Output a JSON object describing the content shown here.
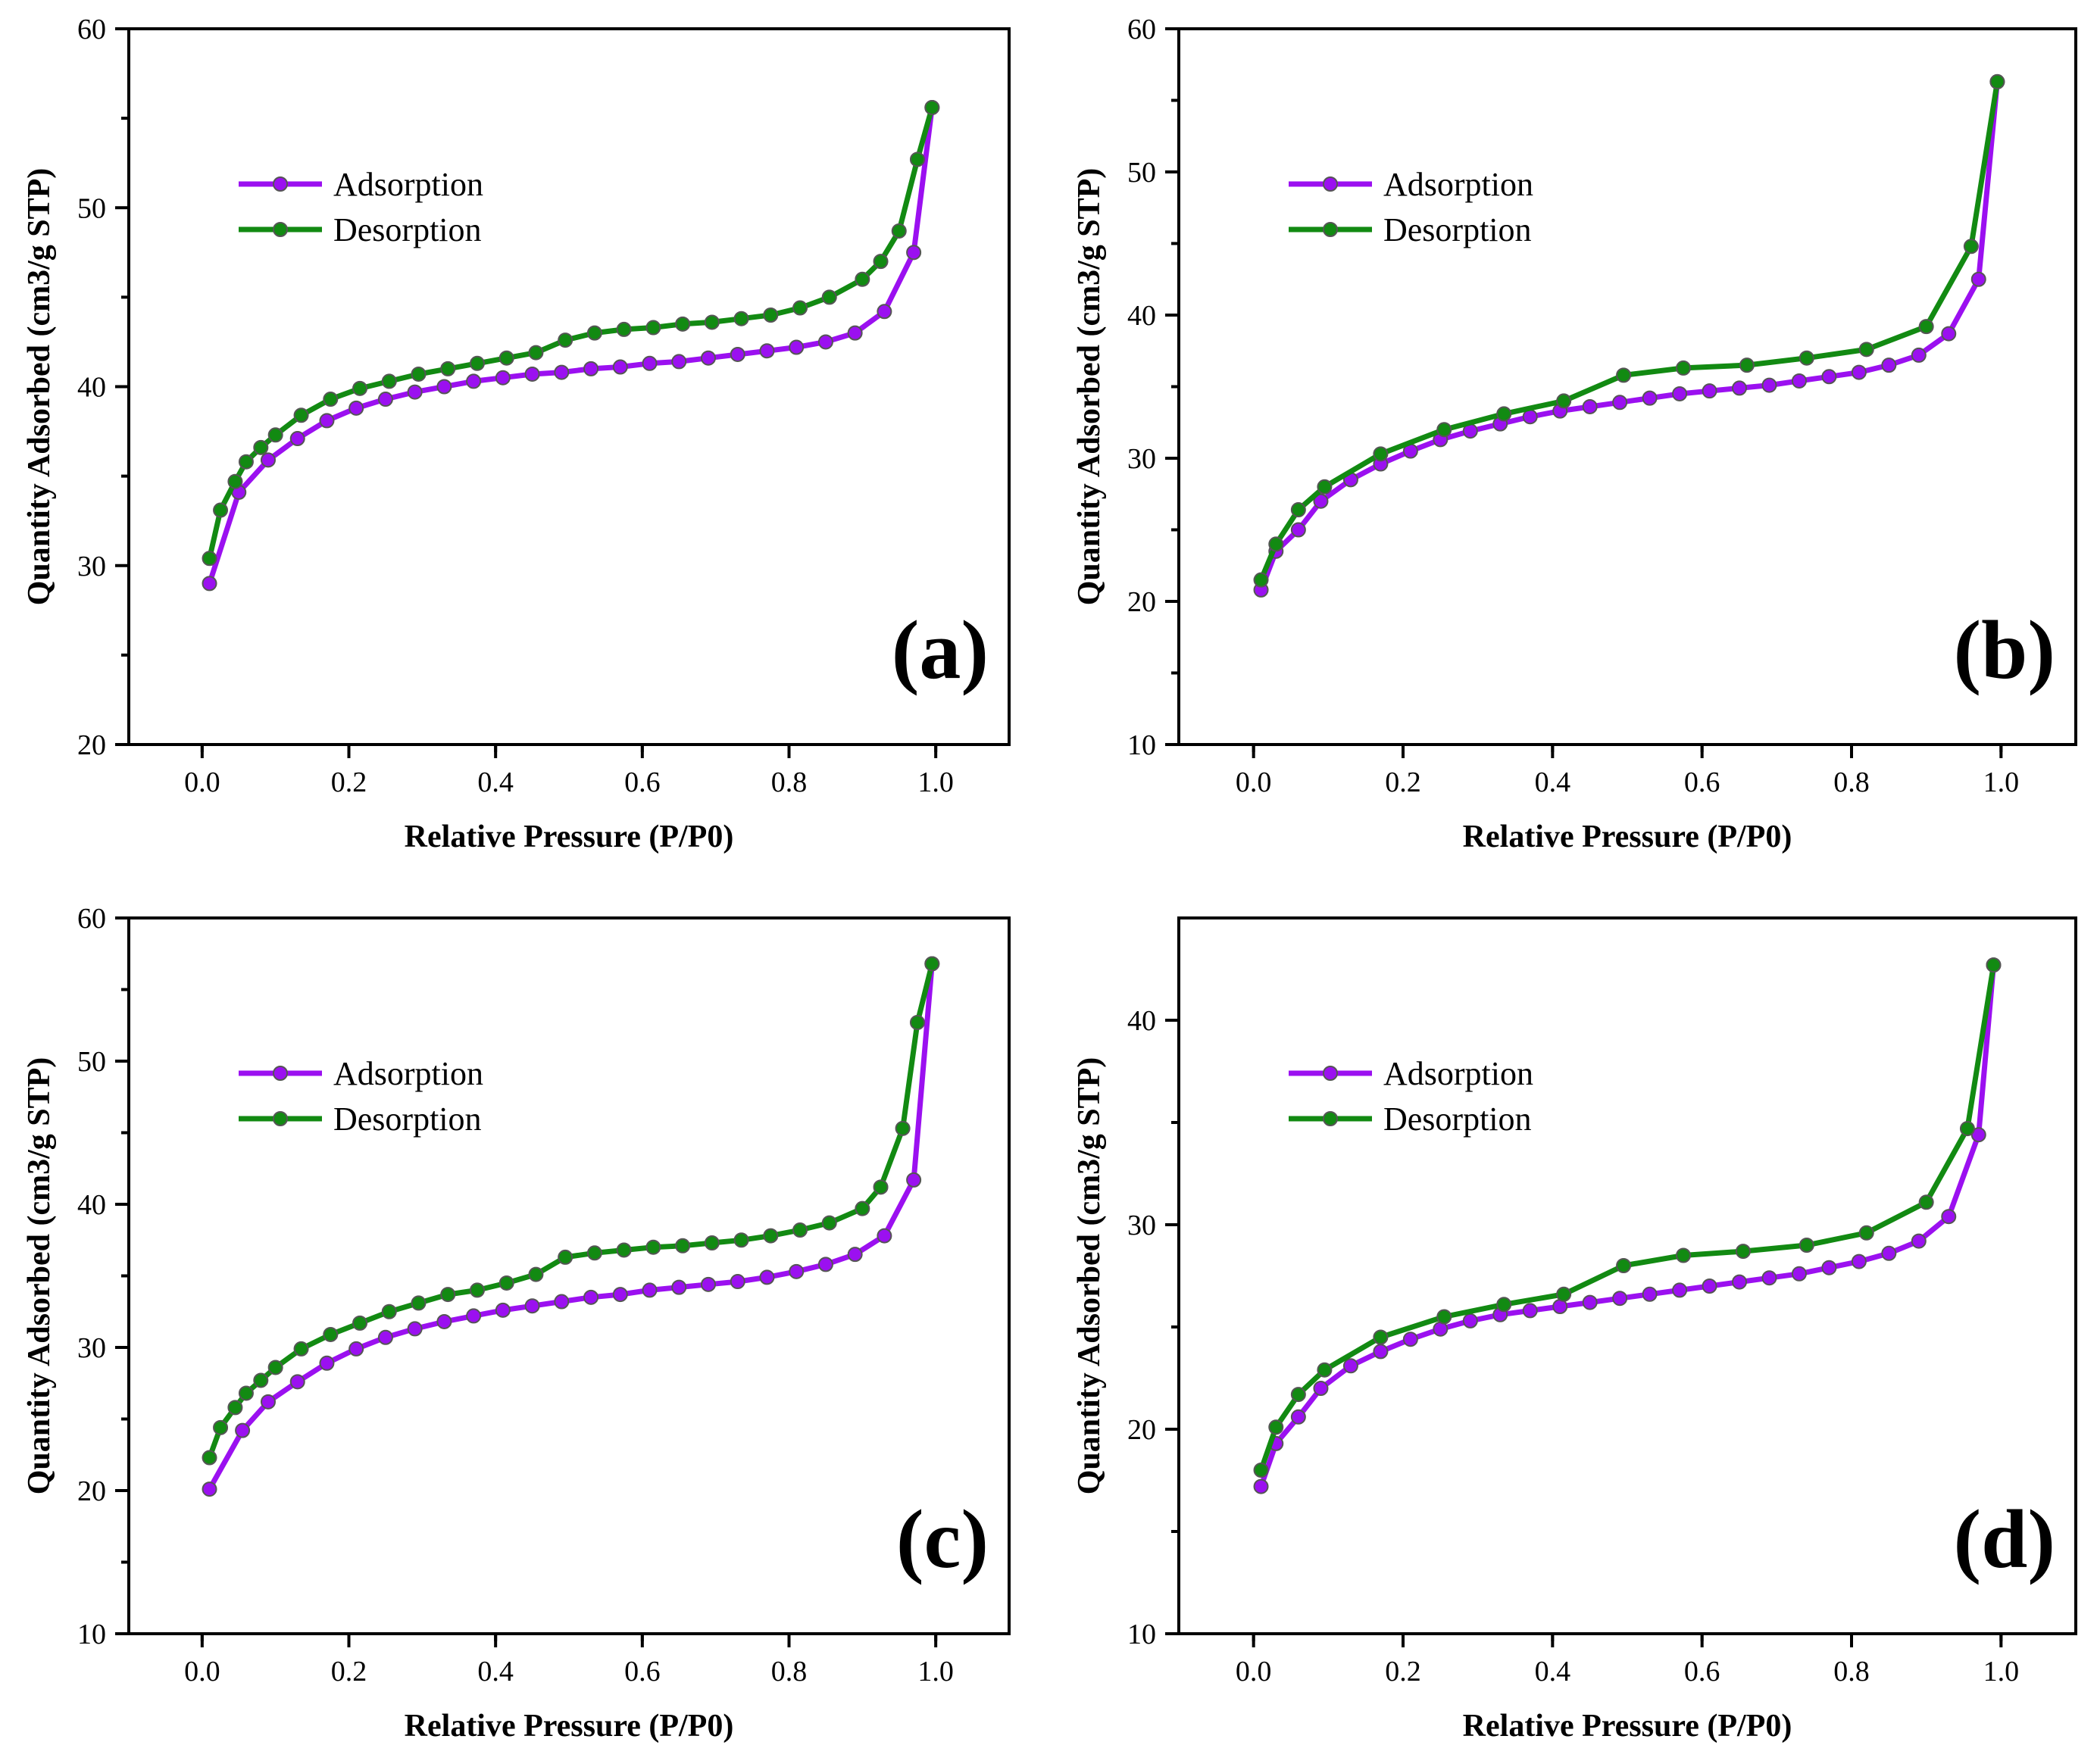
{
  "colors": {
    "adsorption": "#9b10f0",
    "desorption": "#128a12"
  },
  "chart_data": [
    {
      "type": "line",
      "panel_label": "(a)",
      "xlabel": "Relative Pressure (P/P0)",
      "ylabel": "Quantity Adsorbed (cm3/g STP)",
      "xlim": [
        -0.1,
        1.1
      ],
      "ylim": [
        20,
        60
      ],
      "xticks": [
        "0.0",
        "0.2",
        "0.4",
        "0.6",
        "0.8",
        "1.0"
      ],
      "yticks": [
        "20",
        "30",
        "40",
        "50",
        "60"
      ],
      "legend_position": "upper-left",
      "series": [
        {
          "name": "Adsorption",
          "x": [
            0.01,
            0.05,
            0.09,
            0.13,
            0.17,
            0.21,
            0.25,
            0.29,
            0.33,
            0.37,
            0.41,
            0.45,
            0.49,
            0.53,
            0.57,
            0.61,
            0.65,
            0.69,
            0.73,
            0.77,
            0.81,
            0.85,
            0.89,
            0.93,
            0.97,
            0.995
          ],
          "y": [
            29.0,
            34.1,
            35.9,
            37.1,
            38.1,
            38.8,
            39.3,
            39.7,
            40.0,
            40.3,
            40.5,
            40.7,
            40.8,
            41.0,
            41.1,
            41.3,
            41.4,
            41.6,
            41.8,
            42.0,
            42.2,
            42.5,
            43.0,
            44.2,
            47.5,
            55.6
          ]
        },
        {
          "name": "Desorption",
          "x": [
            0.995,
            0.975,
            0.95,
            0.925,
            0.9,
            0.855,
            0.815,
            0.775,
            0.735,
            0.695,
            0.655,
            0.615,
            0.575,
            0.535,
            0.495,
            0.455,
            0.415,
            0.375,
            0.335,
            0.295,
            0.255,
            0.215,
            0.175,
            0.135,
            0.1,
            0.08,
            0.06,
            0.045,
            0.025,
            0.01
          ],
          "y": [
            55.6,
            52.7,
            48.7,
            47.0,
            46.0,
            45.0,
            44.4,
            44.0,
            43.8,
            43.6,
            43.5,
            43.3,
            43.2,
            43.0,
            42.6,
            41.9,
            41.6,
            41.3,
            41.0,
            40.7,
            40.3,
            39.9,
            39.3,
            38.4,
            37.3,
            36.6,
            35.8,
            34.7,
            33.1,
            30.4
          ]
        }
      ]
    },
    {
      "type": "line",
      "panel_label": "(b)",
      "xlabel": "Relative Pressure (P/P0)",
      "ylabel": "Quantity Adsorbed (cm3/g STP)",
      "xlim": [
        -0.1,
        1.1
      ],
      "ylim": [
        10,
        60
      ],
      "xticks": [
        "0.0",
        "0.2",
        "0.4",
        "0.6",
        "0.8",
        "1.0"
      ],
      "yticks": [
        "10",
        "20",
        "30",
        "40",
        "50",
        "60"
      ],
      "legend_position": "upper-left",
      "series": [
        {
          "name": "Adsorption",
          "x": [
            0.01,
            0.03,
            0.06,
            0.09,
            0.13,
            0.17,
            0.21,
            0.25,
            0.29,
            0.33,
            0.37,
            0.41,
            0.45,
            0.49,
            0.53,
            0.57,
            0.61,
            0.65,
            0.69,
            0.73,
            0.77,
            0.81,
            0.85,
            0.89,
            0.93,
            0.97,
            0.995
          ],
          "y": [
            20.8,
            23.5,
            25.0,
            27.0,
            28.5,
            29.6,
            30.5,
            31.3,
            31.9,
            32.4,
            32.9,
            33.3,
            33.6,
            33.9,
            34.2,
            34.5,
            34.7,
            34.9,
            35.1,
            35.4,
            35.7,
            36.0,
            36.5,
            37.2,
            38.7,
            42.5,
            56.3
          ]
        },
        {
          "name": "Desorption",
          "x": [
            0.995,
            0.96,
            0.9,
            0.82,
            0.74,
            0.66,
            0.575,
            0.495,
            0.415,
            0.335,
            0.255,
            0.17,
            0.095,
            0.06,
            0.03,
            0.01
          ],
          "y": [
            56.3,
            44.8,
            39.2,
            37.6,
            37.0,
            36.5,
            36.3,
            35.8,
            34.0,
            33.1,
            32.0,
            30.3,
            28.0,
            26.4,
            24.0,
            21.5
          ]
        }
      ]
    },
    {
      "type": "line",
      "panel_label": "(c)",
      "xlabel": "Relative Pressure (P/P0)",
      "ylabel": "Quantity Adsorbed (cm3/g STP)",
      "xlim": [
        -0.1,
        1.1
      ],
      "ylim": [
        10,
        60
      ],
      "xticks": [
        "0.0",
        "0.2",
        "0.4",
        "0.6",
        "0.8",
        "1.0"
      ],
      "yticks": [
        "10",
        "20",
        "30",
        "40",
        "50",
        "60"
      ],
      "legend_position": "upper-left",
      "series": [
        {
          "name": "Adsorption",
          "x": [
            0.01,
            0.055,
            0.09,
            0.13,
            0.17,
            0.21,
            0.25,
            0.29,
            0.33,
            0.37,
            0.41,
            0.45,
            0.49,
            0.53,
            0.57,
            0.61,
            0.65,
            0.69,
            0.73,
            0.77,
            0.81,
            0.85,
            0.89,
            0.93,
            0.97,
            0.995
          ],
          "y": [
            20.1,
            24.2,
            26.2,
            27.6,
            28.9,
            29.9,
            30.7,
            31.3,
            31.8,
            32.2,
            32.6,
            32.9,
            33.2,
            33.5,
            33.7,
            34.0,
            34.2,
            34.4,
            34.6,
            34.9,
            35.3,
            35.8,
            36.5,
            37.8,
            41.7,
            56.8
          ]
        },
        {
          "name": "Desorption",
          "x": [
            0.995,
            0.975,
            0.955,
            0.925,
            0.9,
            0.855,
            0.815,
            0.775,
            0.735,
            0.695,
            0.655,
            0.615,
            0.575,
            0.535,
            0.495,
            0.455,
            0.415,
            0.375,
            0.335,
            0.295,
            0.255,
            0.215,
            0.175,
            0.135,
            0.1,
            0.08,
            0.06,
            0.045,
            0.025,
            0.01
          ],
          "y": [
            56.8,
            52.7,
            45.3,
            41.2,
            39.7,
            38.7,
            38.2,
            37.8,
            37.5,
            37.3,
            37.1,
            37.0,
            36.8,
            36.6,
            36.3,
            35.1,
            34.5,
            34.0,
            33.7,
            33.1,
            32.5,
            31.7,
            30.9,
            29.9,
            28.6,
            27.7,
            26.8,
            25.8,
            24.4,
            22.3
          ]
        }
      ]
    },
    {
      "type": "line",
      "panel_label": "(d)",
      "xlabel": "Relative Pressure (P/P0)",
      "ylabel": "Quantity Adsorbed (cm3/g STP)",
      "xlim": [
        -0.1,
        1.1
      ],
      "ylim": [
        10,
        45
      ],
      "xticks": [
        "0.0",
        "0.2",
        "0.4",
        "0.6",
        "0.8",
        "1.0"
      ],
      "yticks": [
        "10",
        "20",
        "30",
        "40"
      ],
      "legend_position": "upper-left",
      "series": [
        {
          "name": "Adsorption",
          "x": [
            0.01,
            0.03,
            0.06,
            0.09,
            0.13,
            0.17,
            0.21,
            0.25,
            0.29,
            0.33,
            0.37,
            0.41,
            0.45,
            0.49,
            0.53,
            0.57,
            0.61,
            0.65,
            0.69,
            0.73,
            0.77,
            0.81,
            0.85,
            0.89,
            0.93,
            0.97,
            0.99
          ],
          "y": [
            17.2,
            19.3,
            20.6,
            22.0,
            23.1,
            23.8,
            24.4,
            24.9,
            25.3,
            25.6,
            25.8,
            26.0,
            26.2,
            26.4,
            26.6,
            26.8,
            27.0,
            27.2,
            27.4,
            27.6,
            27.9,
            28.2,
            28.6,
            29.2,
            30.4,
            34.4,
            42.7
          ]
        },
        {
          "name": "Desorption",
          "x": [
            0.99,
            0.955,
            0.9,
            0.82,
            0.74,
            0.655,
            0.575,
            0.495,
            0.415,
            0.335,
            0.255,
            0.17,
            0.095,
            0.06,
            0.03,
            0.01
          ],
          "y": [
            42.7,
            34.7,
            31.1,
            29.6,
            29.0,
            28.7,
            28.5,
            28.0,
            26.6,
            26.1,
            25.5,
            24.5,
            22.9,
            21.7,
            20.1,
            18.0
          ]
        }
      ]
    }
  ]
}
